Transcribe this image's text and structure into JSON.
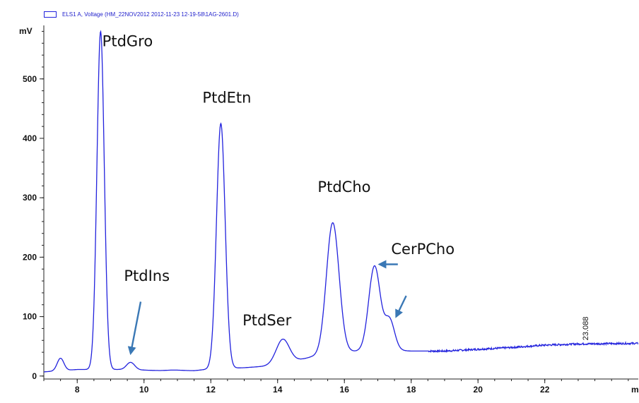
{
  "legend": {
    "text": "ELS1 A, Voltage (HM_22NOV2012 2012-11-23 12-19-58\\1AG-2601.D)",
    "color": "#2222dd"
  },
  "chart_data": {
    "type": "line",
    "title": "",
    "xlabel": "m",
    "ylabel": "mV",
    "xlim": [
      7,
      24.8
    ],
    "ylim": [
      -5,
      590
    ],
    "xticks": [
      8,
      10,
      12,
      14,
      16,
      18,
      20,
      22
    ],
    "yticks": [
      0,
      100,
      200,
      300,
      400,
      500
    ],
    "grid": false,
    "line_color": "#2222dd",
    "arrow_color": "#3a78b5",
    "end_label": "23.088",
    "baseline": [
      [
        7.0,
        7
      ],
      [
        8.0,
        11
      ],
      [
        9.5,
        11
      ],
      [
        10.5,
        9
      ],
      [
        11.5,
        9
      ],
      [
        12.0,
        12
      ],
      [
        13.0,
        14
      ],
      [
        14.0,
        18
      ],
      [
        15.0,
        32
      ],
      [
        16.0,
        40
      ],
      [
        17.0,
        45
      ],
      [
        18.0,
        42
      ],
      [
        19.0,
        42
      ],
      [
        20.0,
        45
      ],
      [
        21.0,
        48
      ],
      [
        22.0,
        52
      ],
      [
        23.0,
        54
      ],
      [
        24.8,
        55
      ]
    ],
    "peaks": [
      {
        "x": 7.5,
        "y": 30,
        "sigma": 0.1
      },
      {
        "x": 8.7,
        "y": 580,
        "sigma": 0.11
      },
      {
        "x": 9.6,
        "y": 23,
        "sigma": 0.12
      },
      {
        "x": 10.9,
        "y": 10,
        "sigma": 0.25
      },
      {
        "x": 12.3,
        "y": 425,
        "sigma": 0.13
      },
      {
        "x": 14.15,
        "y": 62,
        "sigma": 0.2
      },
      {
        "x": 15.65,
        "y": 258,
        "sigma": 0.19
      },
      {
        "x": 16.9,
        "y": 185,
        "sigma": 0.17
      },
      {
        "x": 17.35,
        "y": 95,
        "sigma": 0.15
      }
    ],
    "annotations": [
      {
        "label": "PtdGro",
        "x": 8.75,
        "y": 555
      },
      {
        "label": "PtdIns",
        "x": 9.4,
        "y": 160
      },
      {
        "label": "PtdEtn",
        "x": 11.75,
        "y": 460
      },
      {
        "label": "PtdSer",
        "x": 12.95,
        "y": 85
      },
      {
        "label": "PtdCho",
        "x": 15.2,
        "y": 310
      },
      {
        "label": "CerPCho",
        "x": 17.4,
        "y": 205
      }
    ],
    "arrows": [
      {
        "from": [
          9.9,
          125
        ],
        "to": [
          9.6,
          38
        ]
      },
      {
        "from": [
          17.6,
          188
        ],
        "to": [
          17.05,
          188
        ]
      },
      {
        "from": [
          17.85,
          135
        ],
        "to": [
          17.55,
          100
        ]
      }
    ]
  }
}
